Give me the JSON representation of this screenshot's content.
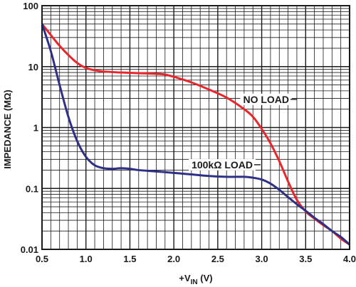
{
  "chart_data": {
    "type": "line",
    "xlabel_main": "+V",
    "xlabel_sub": "IN",
    "xlabel_unit": " (V)",
    "ylabel": "IMPEDANCE (MΩ)",
    "xlim": [
      0.5,
      4.0
    ],
    "ylim": [
      0.01,
      100
    ],
    "yscale": "log",
    "grid": true,
    "x_ticks": [
      0.5,
      1.0,
      1.5,
      2.0,
      2.5,
      3.0,
      3.5,
      4.0
    ],
    "x_tick_labels": [
      "0.5",
      "1.0",
      "1.5",
      "2.0",
      "2.5",
      "3.0",
      "3.5",
      "4.0"
    ],
    "y_ticks": [
      0.01,
      0.1,
      1,
      10,
      100
    ],
    "y_tick_labels": [
      "0.01",
      "0.1",
      "1",
      "10",
      "100"
    ],
    "series": [
      {
        "name": "NO LOAD",
        "color": "#e8262b",
        "points": [
          [
            0.5,
            50
          ],
          [
            0.6,
            33
          ],
          [
            0.7,
            22
          ],
          [
            0.8,
            15.5
          ],
          [
            0.9,
            11.5
          ],
          [
            1.0,
            9.5
          ],
          [
            1.1,
            8.7
          ],
          [
            1.2,
            8.3
          ],
          [
            1.4,
            8.0
          ],
          [
            1.6,
            7.8
          ],
          [
            1.8,
            7.6
          ],
          [
            1.9,
            7.4
          ],
          [
            2.0,
            6.8
          ],
          [
            2.2,
            5.5
          ],
          [
            2.4,
            4.2
          ],
          [
            2.6,
            3.1
          ],
          [
            2.8,
            2.0
          ],
          [
            2.9,
            1.5
          ],
          [
            3.0,
            0.95
          ],
          [
            3.1,
            0.55
          ],
          [
            3.2,
            0.28
          ],
          [
            3.3,
            0.13
          ],
          [
            3.4,
            0.065
          ],
          [
            3.5,
            0.042
          ],
          [
            3.6,
            0.032
          ],
          [
            3.7,
            0.025
          ],
          [
            3.8,
            0.02
          ],
          [
            3.9,
            0.015
          ],
          [
            4.0,
            0.012
          ]
        ]
      },
      {
        "name": "100kΩ LOAD",
        "color": "#2e2f86",
        "points": [
          [
            0.5,
            50
          ],
          [
            0.6,
            18
          ],
          [
            0.7,
            5
          ],
          [
            0.8,
            1.5
          ],
          [
            0.9,
            0.6
          ],
          [
            1.0,
            0.33
          ],
          [
            1.1,
            0.24
          ],
          [
            1.2,
            0.215
          ],
          [
            1.3,
            0.21
          ],
          [
            1.4,
            0.215
          ],
          [
            1.5,
            0.21
          ],
          [
            1.6,
            0.2
          ],
          [
            1.8,
            0.19
          ],
          [
            2.0,
            0.18
          ],
          [
            2.2,
            0.17
          ],
          [
            2.4,
            0.16
          ],
          [
            2.6,
            0.155
          ],
          [
            2.8,
            0.155
          ],
          [
            2.9,
            0.15
          ],
          [
            3.0,
            0.14
          ],
          [
            3.1,
            0.12
          ],
          [
            3.2,
            0.095
          ],
          [
            3.3,
            0.072
          ],
          [
            3.4,
            0.055
          ],
          [
            3.5,
            0.043
          ],
          [
            3.6,
            0.033
          ],
          [
            3.7,
            0.026
          ],
          [
            3.8,
            0.02
          ],
          [
            3.9,
            0.016
          ],
          [
            4.0,
            0.012
          ]
        ]
      }
    ],
    "annotations": [
      {
        "text": "NO LOAD",
        "x": 3.05,
        "y": 2.9,
        "series": 0
      },
      {
        "text": "100kΩ LOAD",
        "x": 2.55,
        "y": 0.245,
        "series": 1
      }
    ]
  }
}
